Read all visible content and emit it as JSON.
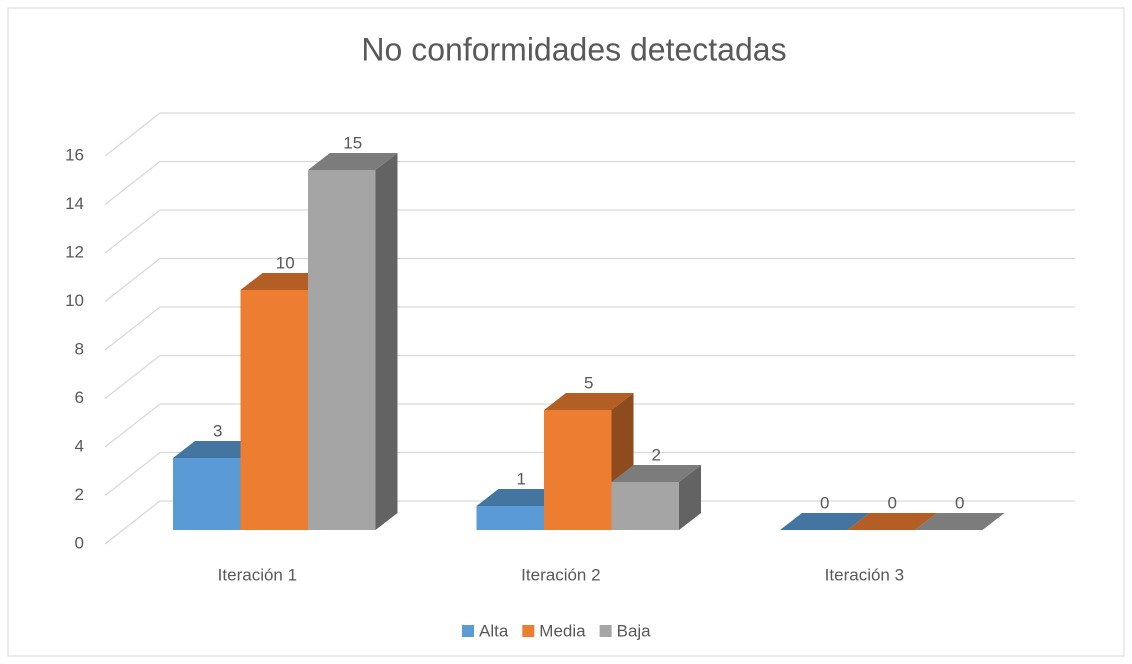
{
  "chart_data": {
    "type": "bar3d",
    "title": "No conformidades detectadas",
    "categories": [
      "Iteración 1",
      "Iteración 2",
      "Iteración 3"
    ],
    "series": [
      {
        "name": "Alta",
        "color": "#5b9bd5",
        "values": [
          3,
          1,
          0
        ]
      },
      {
        "name": "Media",
        "color": "#ed7d31",
        "values": [
          10,
          5,
          0
        ]
      },
      {
        "name": "Baja",
        "color": "#a5a5a5",
        "values": [
          15,
          2,
          0
        ]
      }
    ],
    "ylim": [
      0,
      16
    ],
    "yticks": [
      0,
      2,
      4,
      6,
      8,
      10,
      12,
      14,
      16
    ],
    "grid": true,
    "legend": "bottom"
  }
}
